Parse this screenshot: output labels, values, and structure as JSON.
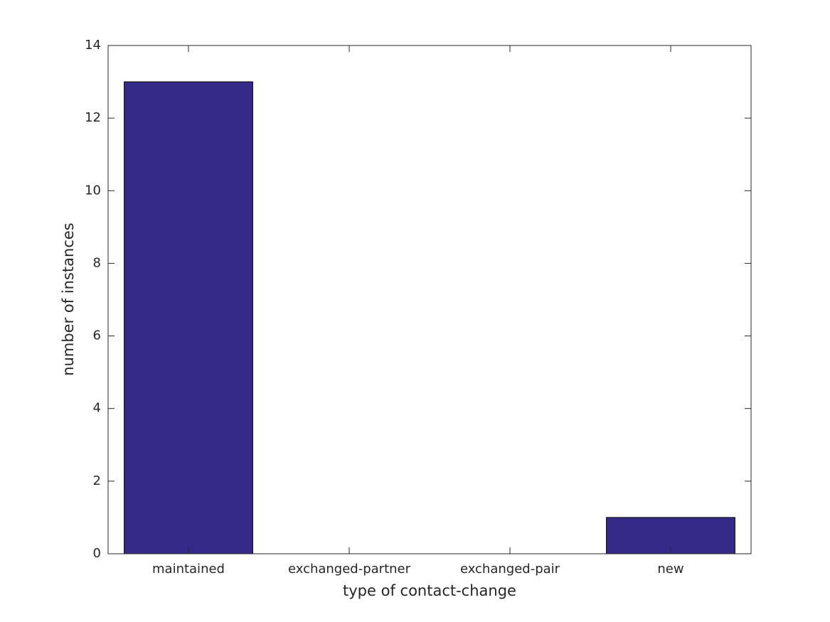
{
  "chart_data": {
    "type": "bar",
    "categories": [
      "maintained",
      "exchanged-partner",
      "exchanged-pair",
      "new"
    ],
    "values": [
      13,
      0,
      0,
      1
    ],
    "color": "#352a87",
    "xlabel": "type of contact-change",
    "ylabel": "number of instances",
    "ylim": [
      0,
      14
    ],
    "yticks": [
      0,
      2,
      4,
      6,
      8,
      10,
      12,
      14
    ],
    "grid": false
  }
}
